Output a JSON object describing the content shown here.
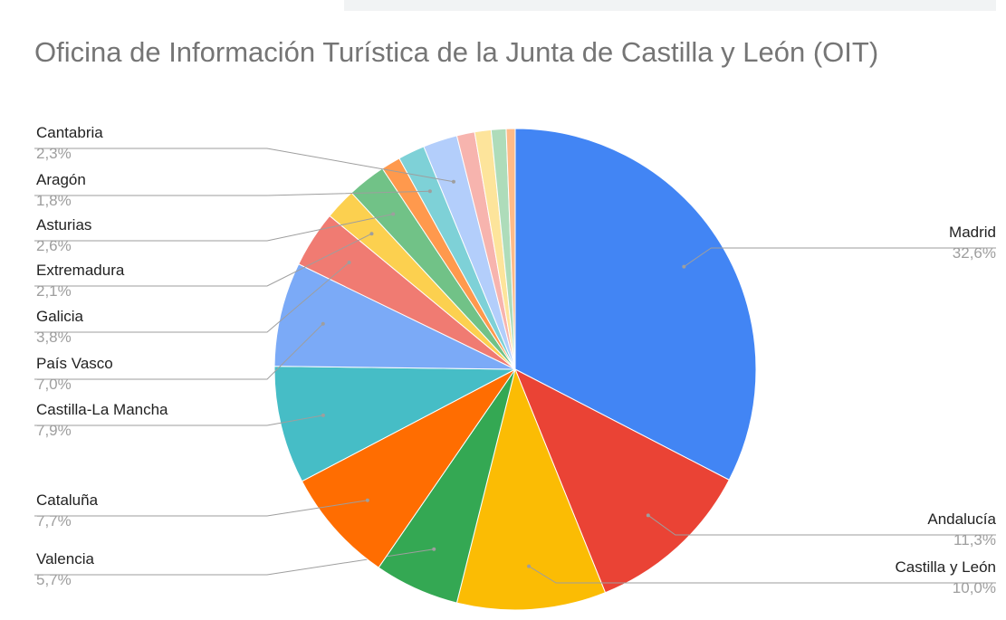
{
  "chart_data": {
    "type": "pie",
    "title": "Oficina de Información Turística de la Junta de Castilla y León (OIT)",
    "categories": [
      "Madrid",
      "Andalucía",
      "Castilla y León",
      "Valencia",
      "Cataluña",
      "Castilla-La Mancha",
      "País Vasco",
      "Galicia",
      "Extremadura",
      "Asturias",
      null,
      "Aragón",
      "Cantabria",
      null,
      null,
      null,
      null
    ],
    "values": [
      32.6,
      11.3,
      10.0,
      5.7,
      7.7,
      7.9,
      7.0,
      3.8,
      2.1,
      2.6,
      1.3,
      1.8,
      2.3,
      1.2,
      1.1,
      1.0,
      0.6
    ],
    "value_labels": [
      "32,6%",
      "11,3%",
      "10,0%",
      "5,7%",
      "7,7%",
      "7,9%",
      "7,0%",
      "3,8%",
      "2,1%",
      "2,6%",
      null,
      "1,8%",
      "2,3%",
      null,
      null,
      null,
      null
    ],
    "colors": [
      "#4285f4",
      "#ea4335",
      "#fbbc04",
      "#34a853",
      "#ff6d01",
      "#46bdc6",
      "#7baaf7",
      "#f07b72",
      "#fcd04f",
      "#71c287",
      "#ff994d",
      "#7ed1d7",
      "#b3cefb",
      "#f7b4ae",
      "#fde49b",
      "#aedcba",
      "#ffbb88"
    ]
  }
}
